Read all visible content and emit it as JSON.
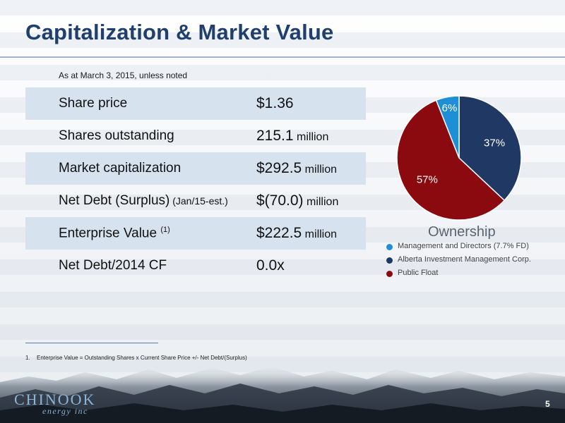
{
  "slide": {
    "title": "Capitalization & Market Value",
    "as_of": "As at March 3, 2015, unless noted",
    "page_number": "5"
  },
  "table": {
    "rows": [
      {
        "label": "Share price",
        "value": "$1.36",
        "unit": ""
      },
      {
        "label": "Shares outstanding",
        "value": "215.1",
        "unit": " million"
      },
      {
        "label": "Market capitalization",
        "value": "$292.5",
        "unit": " million"
      },
      {
        "label": "Net Debt (Surplus)",
        "label_sub": " (Jan/15-est.)",
        "value": "$(70.0)",
        "unit": " million"
      },
      {
        "label": "Enterprise Value",
        "label_sup": "(1)",
        "value": "$222.5",
        "unit": " million"
      },
      {
        "label": "Net Debt/2014 CF",
        "value": "0.0x",
        "unit": ""
      }
    ]
  },
  "chart_data": {
    "type": "pie",
    "title": "Ownership",
    "slices": [
      {
        "name": "Alberta Investment Management Corp.",
        "value": 37,
        "label": "37%",
        "color": "#1f3864"
      },
      {
        "name": "Public Float",
        "value": 57,
        "label": "57%",
        "color": "#8b0a0f"
      },
      {
        "name": "Management and Directors (7.7% FD)",
        "value": 6,
        "label": "6%",
        "color": "#1e8fd6"
      }
    ],
    "legend": [
      {
        "label": "Management and Directors (7.7% FD)",
        "color": "#1e8fd6"
      },
      {
        "label": "Alberta Investment Management Corp.",
        "color": "#1f3864"
      },
      {
        "label": "Public Float",
        "color": "#8b0a0f"
      }
    ],
    "legend_position": "bottom"
  },
  "footnote": {
    "number": "1.",
    "text": "Enterprise Value = Outstanding Shares x Current Share Price +/- Net Debt/(Surplus)"
  },
  "logo": {
    "name": "CHINOOK",
    "sub": "energy inc"
  },
  "colors": {
    "title": "#1f3f6e",
    "row_shade": "#d7e2ef"
  }
}
